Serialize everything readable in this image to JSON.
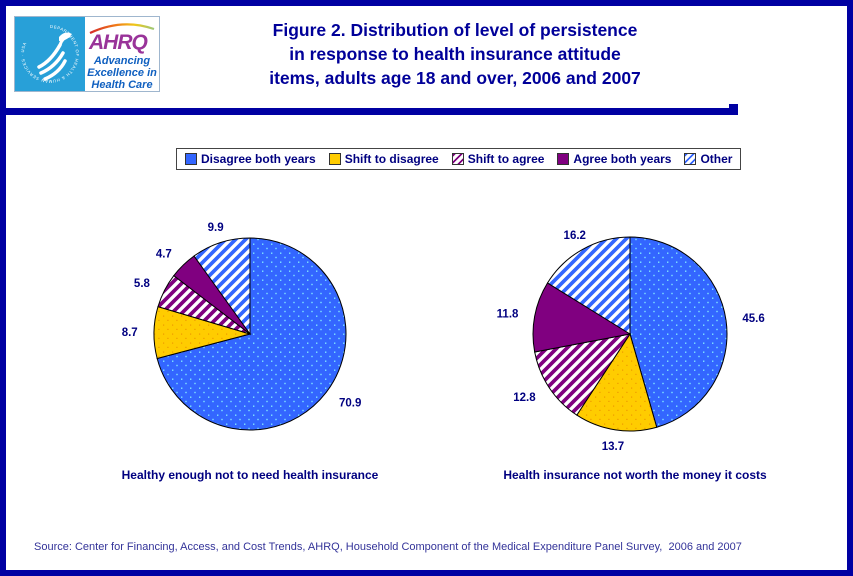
{
  "colors": {
    "page_border": "#0000A2",
    "title_navy": "#000099",
    "label_navy": "#000080",
    "source_blue": "#333399",
    "pie_blue": "#3366FF",
    "pie_gold": "#FFCC00",
    "pie_purple": "#800080",
    "hhs_blue": "#28A0D8",
    "ahrq_purple": "#993399",
    "tagline_blue": "#1060C0"
  },
  "header": {
    "logo": {
      "hhs_ring_text": "DEPARTMENT OF HEALTH & HUMAN SERVICES · USA",
      "ahrq_acronym": "AHRQ",
      "ahrq_tagline_lines": [
        "Advancing",
        "Excellence in",
        "Health Care"
      ]
    },
    "title_lines": [
      "Figure 2. Distribution of level of persistence",
      "in response to health insurance attitude",
      "items, adults age 18 and over, 2006 and 2007"
    ]
  },
  "legend": {
    "position": "top-center",
    "items": [
      {
        "label": "Disagree both years",
        "swatch": "blue-solid"
      },
      {
        "label": "Shift to disagree",
        "swatch": "gold-solid"
      },
      {
        "label": "Shift to agree",
        "swatch": "purple-striped"
      },
      {
        "label": "Agree both years",
        "swatch": "purple-solid"
      },
      {
        "label": "Other",
        "swatch": "blue-striped"
      }
    ]
  },
  "chart_data": [
    {
      "type": "pie",
      "title": "Healthy enough not to need health insurance",
      "categories": [
        "Disagree both years",
        "Shift to disagree",
        "Shift to agree",
        "Agree both years",
        "Other"
      ],
      "values": [
        70.9,
        8.7,
        5.8,
        4.7,
        9.9
      ],
      "start_angle": "12-o'clock",
      "direction": "clockwise",
      "value_labels": "outside",
      "legend_position": "top"
    },
    {
      "type": "pie",
      "title": "Health insurance not worth the money it costs",
      "categories": [
        "Disagree both years",
        "Shift to disagree",
        "Shift to agree",
        "Agree both years",
        "Other"
      ],
      "values": [
        45.6,
        13.7,
        12.8,
        11.8,
        16.2
      ],
      "start_angle": "12-o'clock",
      "direction": "clockwise",
      "value_labels": "outside",
      "legend_position": "top"
    }
  ],
  "source": "Source: Center for Financing, Access, and Cost Trends, AHRQ, Household Component of the Medical Expenditure Panel Survey,  2006 and 2007"
}
